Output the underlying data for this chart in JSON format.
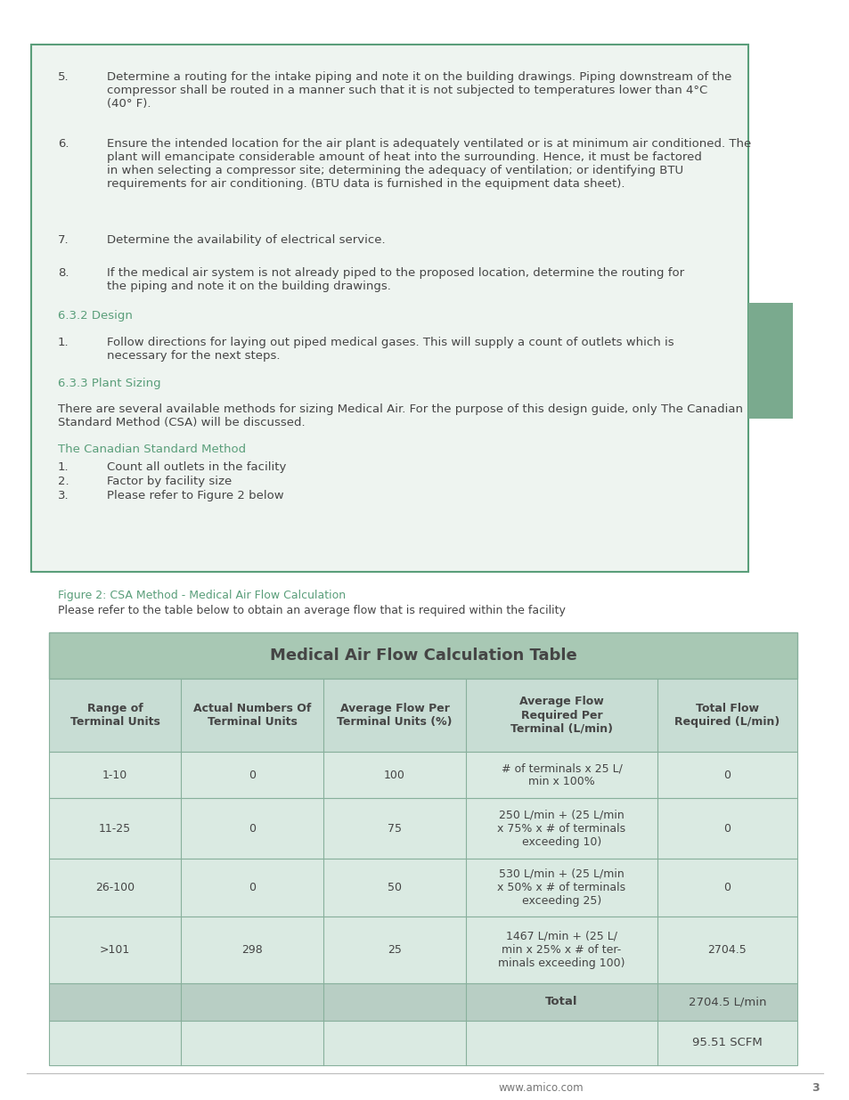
{
  "page_bg": "#ffffff",
  "content_box_bg": "#eef4f0",
  "content_box_border": "#5a9e7a",
  "table_outer_bg": "#a8c8b4",
  "table_title_bg": "#a8c8b4",
  "table_header_bg": "#c8ddd4",
  "table_row_bg": "#daeae2",
  "table_total_bg": "#b8cec4",
  "table_scfm_bg": "#daeae2",
  "table_border": "#88b09c",
  "green_text": "#5a9e7a",
  "dark_text": "#454545",
  "light_text": "#777777",
  "sidebar_color": "#7aaa8e",
  "title": "Medical Air Flow Calculation Table",
  "figure_caption": "Figure 2: CSA Method - Medical Air Flow Calculation",
  "figure_subcaption": "Please refer to the table below to obtain an average flow that is required within the facility",
  "section_632": "6.3.2 Design",
  "section_633": "6.3.3 Plant Sizing",
  "canadian_method": "The Canadian Standard Method",
  "col_headers": [
    "Range of\nTerminal Units",
    "Actual Numbers Of\nTerminal Units",
    "Average Flow Per\nTerminal Units (%)",
    "Average Flow\nRequired Per\nTerminal (L/min)",
    "Total Flow\nRequired (L/min)"
  ],
  "rows": [
    [
      "1-10",
      "0",
      "100",
      "# of terminals x 25 L/\nmin x 100%",
      "0"
    ],
    [
      "11-25",
      "0",
      "75",
      "250 L/min + (25 L/min\nx 75% x # of terminals\nexceeding 10)",
      "0"
    ],
    [
      "26-100",
      "0",
      "50",
      "530 L/min + (25 L/min\nx 50% x # of terminals\nexceeding 25)",
      "0"
    ],
    [
      ">101",
      "298",
      "25",
      "1467 L/min + (25 L/\nmin x 25% x # of ter-\nminals exceeding 100)",
      "2704.5"
    ]
  ],
  "footer_text": "www.amico.com",
  "page_number": "3"
}
